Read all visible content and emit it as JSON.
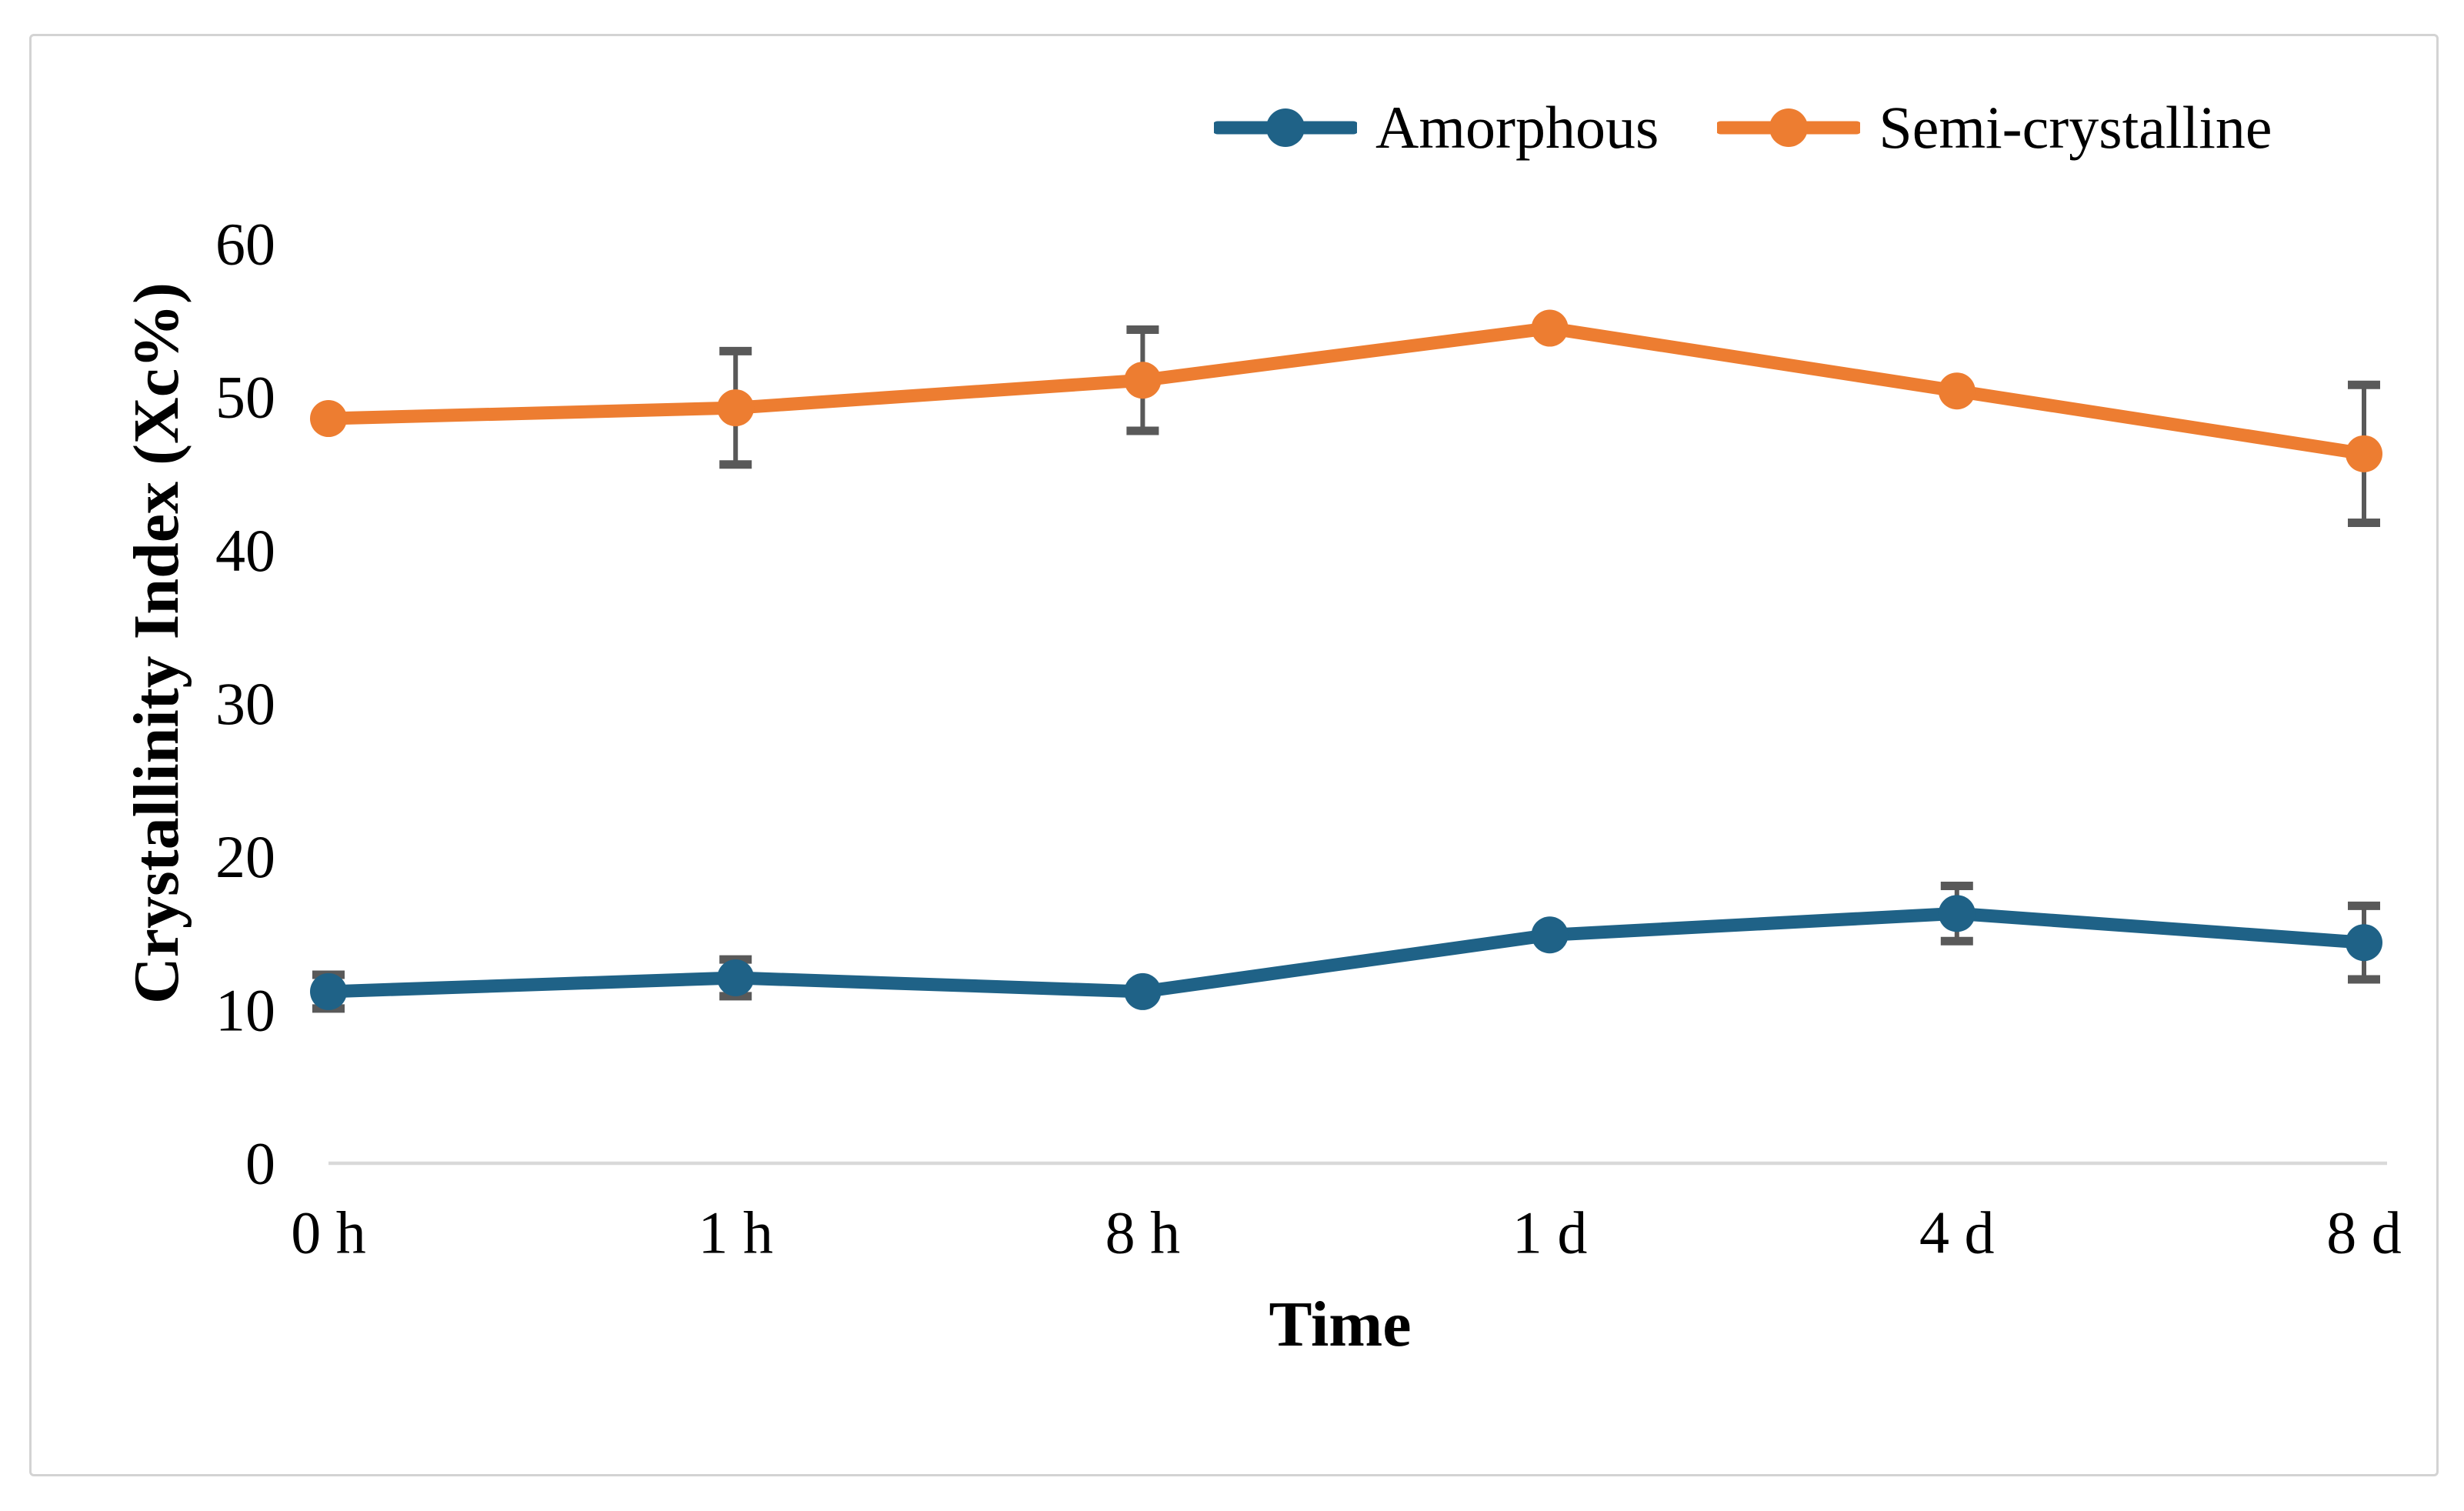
{
  "figure": {
    "background": "#FFFFFF",
    "border_color": "#D3D3D3"
  },
  "legend": {
    "items": [
      {
        "label": "Amorphous",
        "color": "#1F6287",
        "marker": "circle-on-line"
      },
      {
        "label": "Semi-crystalline",
        "color": "#ED7D31",
        "marker": "circle-on-line"
      }
    ]
  },
  "chart_data": {
    "type": "line",
    "title": "",
    "xlabel": "Time",
    "ylabel": "Crystallinity Index (Xc%)",
    "categories": [
      "0 h",
      "1 h",
      "8 h",
      "1 d",
      "4 d",
      "8 d"
    ],
    "series": [
      {
        "name": "Amorphous",
        "color": "#1F6287",
        "values": [
          11.2,
          12.1,
          11.2,
          14.9,
          16.3,
          14.4
        ],
        "error_bars": [
          1.1,
          1.2,
          0,
          0,
          1.8,
          2.4
        ]
      },
      {
        "name": "Semi-crystalline",
        "color": "#ED7D31",
        "values": [
          48.6,
          49.3,
          51.1,
          54.5,
          50.4,
          46.3
        ],
        "error_bars": [
          0,
          3.7,
          3.3,
          0,
          0,
          4.5
        ]
      }
    ],
    "ylim": [
      0,
      60
    ],
    "yticks": [
      0,
      10,
      20,
      30,
      40,
      50,
      60
    ],
    "grid": false,
    "legend_position": "top-right",
    "error_bar_color": "#595959",
    "axis_line_color": "#D9D9D9",
    "text_color": "#000000",
    "marker": "circle"
  }
}
